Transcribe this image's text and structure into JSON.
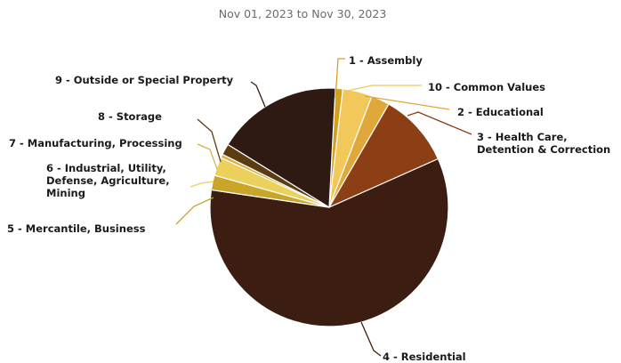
{
  "subtitle": "Nov 01, 2023 to Nov 30, 2023",
  "chart_data": {
    "type": "pie",
    "subtitle": "Nov 01, 2023 to Nov 30, 2023",
    "unit": "percent",
    "slices": [
      {
        "label": "1 - Assembly",
        "value": 1.0,
        "color": "#d3a21c"
      },
      {
        "label": "10 - Common Values",
        "value": 4.0,
        "color": "#f2c85a"
      },
      {
        "label": "2 - Educational",
        "value": 2.5,
        "color": "#e0a83a"
      },
      {
        "label": "3 - Health Care, Detention & Correction",
        "value": 10.0,
        "color": "#8c3e14"
      },
      {
        "label": "4 - Residential",
        "value": 59.0,
        "color": "#3b1e11"
      },
      {
        "label": "5 - Mercantile, Business",
        "value": 2.0,
        "color": "#c9a629"
      },
      {
        "label": "6 - Industrial, Utility, Defense, Agriculture, Mining",
        "value": 2.5,
        "color": "#ecd05c"
      },
      {
        "label": "7 - Manufacturing, Processing",
        "value": 0.5,
        "color": "#d8b24a"
      },
      {
        "label": "8 - Storage",
        "value": 1.5,
        "color": "#5c3d12"
      },
      {
        "label": "9 - Outside or Special Property",
        "value": 17.0,
        "color": "#2e1a12"
      }
    ]
  }
}
